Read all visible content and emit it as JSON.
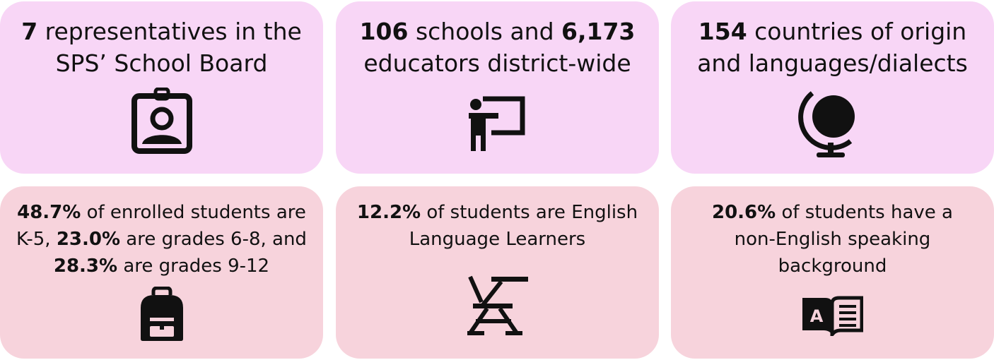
{
  "cards": [
    {
      "strong1": "7",
      "text1": " representatives in the SPS’ School Board",
      "icon": "id-badge-icon"
    },
    {
      "strong1": "106",
      "text1": " schools and ",
      "strong2": "6,173",
      "text2": " educators district-wide",
      "icon": "teacher-board-icon"
    },
    {
      "strong1": "154",
      "text1": " countries of origin and languages/dialects",
      "icon": "globe-icon"
    },
    {
      "strong1": "48.7%",
      "text1": " of enrolled students are K-5, ",
      "strong2": "23.0%",
      "text2": " are grades 6-8, and ",
      "strong3": "28.3%",
      "text3": " are grades 9-12",
      "icon": "backpack-icon"
    },
    {
      "strong1": "12.2%",
      "text1": " of students are English Language Learners",
      "icon": "school-desk-icon"
    },
    {
      "strong1": "20.6%",
      "text1": " of students have a non-English speaking background",
      "icon": "book-icon"
    }
  ],
  "book_letter": "A",
  "colors": {
    "row1_bg": "#f8d6f6",
    "row2_bg": "#f7d3dc",
    "icon": "#111111"
  }
}
